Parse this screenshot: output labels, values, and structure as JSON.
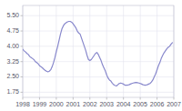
{
  "chart_data": {
    "type": "line",
    "x": [
      1998.0,
      1998.083,
      1998.167,
      1998.25,
      1998.333,
      1998.417,
      1998.5,
      1998.583,
      1998.667,
      1998.75,
      1998.833,
      1998.917,
      1999.0,
      1999.083,
      1999.167,
      1999.25,
      1999.333,
      1999.417,
      1999.5,
      1999.583,
      1999.667,
      1999.75,
      1999.833,
      1999.917,
      2000.0,
      2000.083,
      2000.167,
      2000.25,
      2000.333,
      2000.417,
      2000.5,
      2000.583,
      2000.667,
      2000.75,
      2000.833,
      2000.917,
      2001.0,
      2001.083,
      2001.167,
      2001.25,
      2001.333,
      2001.417,
      2001.5,
      2001.583,
      2001.667,
      2001.75,
      2001.833,
      2001.917,
      2002.0,
      2002.083,
      2002.167,
      2002.25,
      2002.333,
      2002.417,
      2002.5,
      2002.583,
      2002.667,
      2002.75,
      2002.833,
      2002.917,
      2003.0,
      2003.083,
      2003.167,
      2003.25,
      2003.333,
      2003.417,
      2003.5,
      2003.583,
      2003.667,
      2003.75,
      2003.833,
      2003.917,
      2004.0,
      2004.083,
      2004.167,
      2004.25,
      2004.333,
      2004.417,
      2004.5,
      2004.583,
      2004.667,
      2004.75,
      2004.833,
      2004.917,
      2005.0,
      2005.083,
      2005.167,
      2005.25,
      2005.333,
      2005.417,
      2005.5,
      2005.583,
      2005.667,
      2005.75,
      2005.833,
      2005.917,
      2006.0,
      2006.083,
      2006.167,
      2006.25,
      2006.333,
      2006.417,
      2006.5,
      2006.583,
      2006.667,
      2006.75,
      2006.833,
      2006.917
    ],
    "values": [
      3.85,
      3.78,
      3.72,
      3.65,
      3.6,
      3.5,
      3.45,
      3.4,
      3.35,
      3.25,
      3.2,
      3.15,
      3.05,
      3.0,
      2.95,
      2.88,
      2.82,
      2.78,
      2.75,
      2.78,
      2.85,
      3.0,
      3.2,
      3.45,
      3.75,
      4.0,
      4.3,
      4.6,
      4.85,
      5.0,
      5.1,
      5.15,
      5.2,
      5.22,
      5.22,
      5.18,
      5.1,
      5.0,
      4.9,
      4.75,
      4.65,
      4.6,
      4.4,
      4.2,
      4.0,
      3.8,
      3.55,
      3.35,
      3.3,
      3.35,
      3.45,
      3.55,
      3.65,
      3.7,
      3.6,
      3.45,
      3.3,
      3.1,
      2.95,
      2.8,
      2.6,
      2.45,
      2.35,
      2.3,
      2.2,
      2.12,
      2.08,
      2.06,
      2.12,
      2.18,
      2.2,
      2.18,
      2.15,
      2.1,
      2.1,
      2.1,
      2.12,
      2.15,
      2.18,
      2.2,
      2.22,
      2.23,
      2.22,
      2.2,
      2.18,
      2.15,
      2.12,
      2.1,
      2.1,
      2.12,
      2.15,
      2.18,
      2.25,
      2.35,
      2.5,
      2.65,
      2.85,
      3.05,
      3.2,
      3.4,
      3.55,
      3.68,
      3.78,
      3.88,
      3.95,
      4.0,
      4.1,
      4.18
    ],
    "color": "#8888cc",
    "xlim": [
      1998.0,
      2007.0
    ],
    "ylim": [
      1.5,
      6.0
    ],
    "xticks": [
      1998,
      1999,
      2000,
      2001,
      2002,
      2003,
      2004,
      2005,
      2006,
      2007
    ],
    "yticks": [
      1.75,
      {
        "value": 2.5,
        "label": "2.50"
      },
      3.25,
      {
        "value": 4.0,
        "label": "4.00"
      },
      4.75,
      {
        "value": 5.5,
        "label": "5.50"
      }
    ],
    "grid": true
  }
}
